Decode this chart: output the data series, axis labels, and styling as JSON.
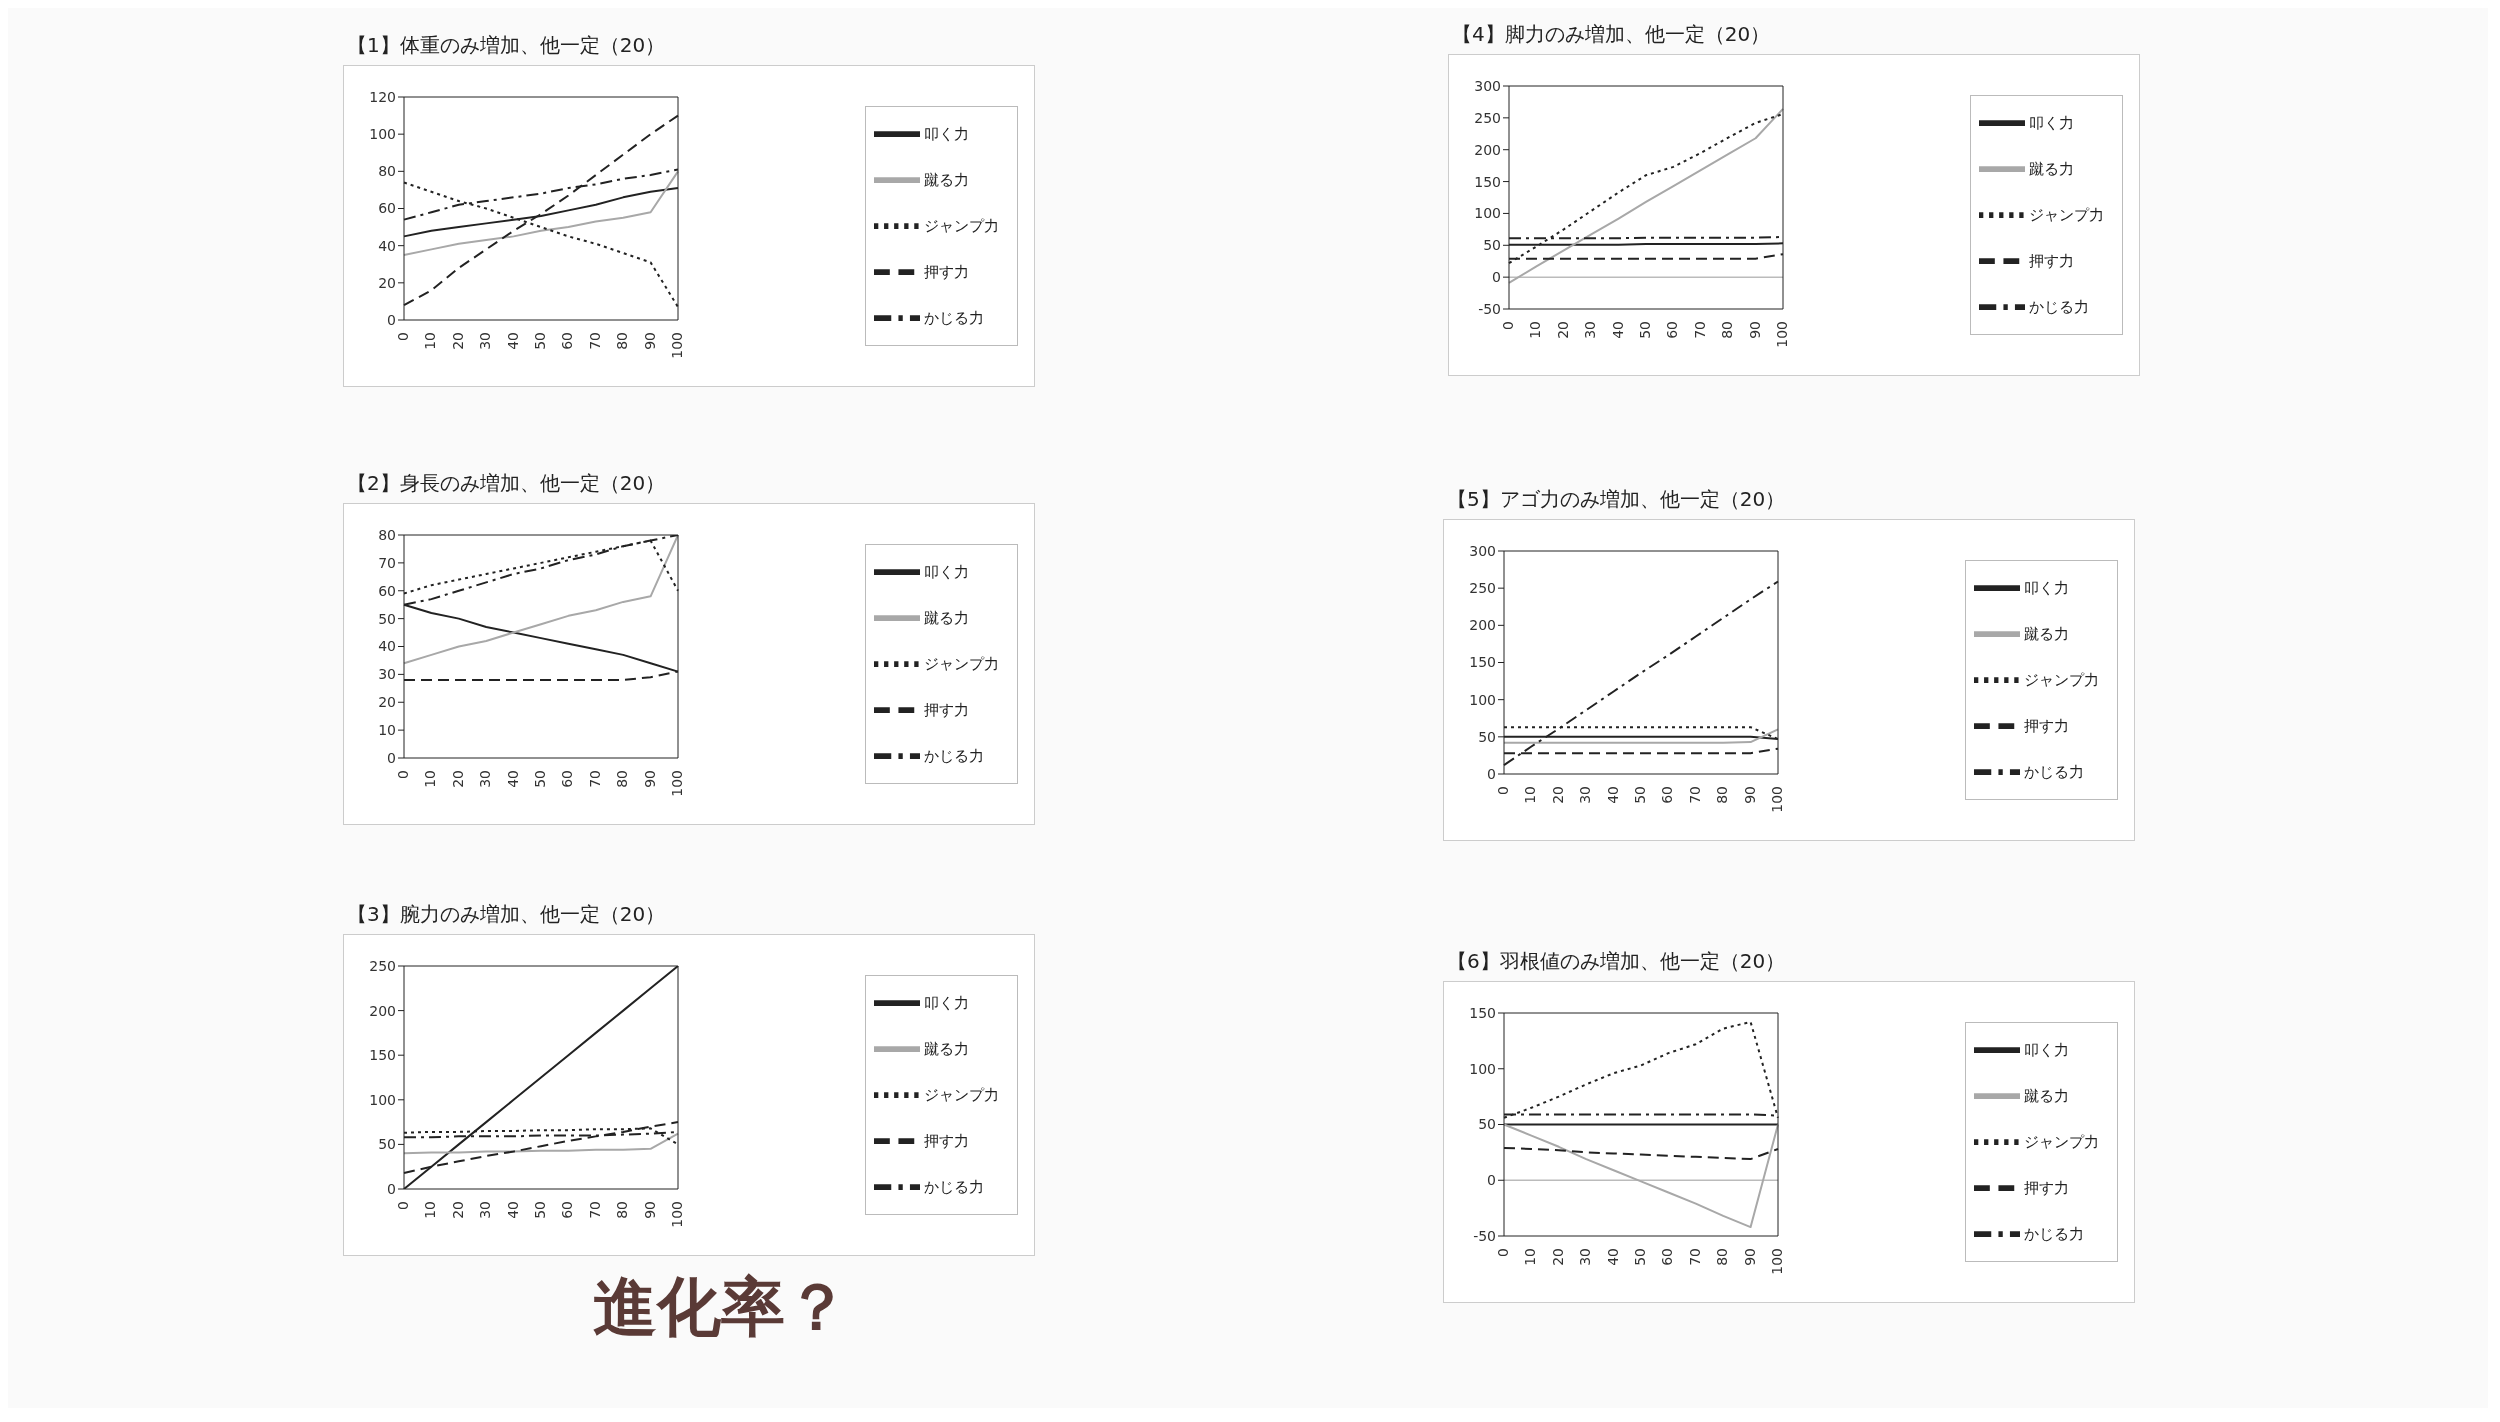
{
  "chart_data": [
    {
      "type": "line",
      "title": "【1】体重のみ増加、他一定（20）",
      "categories": [
        "0",
        "10",
        "20",
        "30",
        "40",
        "50",
        "60",
        "70",
        "80",
        "90",
        "100"
      ],
      "ylim": [
        0,
        120
      ],
      "yticks": [
        0,
        20,
        40,
        60,
        80,
        100,
        120
      ],
      "grid": false,
      "legend": "right",
      "series": [
        {
          "name": "叩く力",
          "color": "#222222",
          "line_style": "solid",
          "values": [
            45,
            48,
            50,
            52,
            54,
            56,
            59,
            62,
            66,
            69,
            71
          ]
        },
        {
          "name": "蹴る力",
          "color": "#a8a8a8",
          "line_style": "solid",
          "values": [
            35,
            38,
            41,
            43,
            45,
            48,
            50,
            53,
            55,
            58,
            80
          ]
        },
        {
          "name": "ジャンプ力",
          "color": "#222222",
          "line_style": "dotted",
          "values": [
            74,
            69,
            64,
            60,
            55,
            50,
            45,
            41,
            36,
            31,
            7
          ]
        },
        {
          "name": "押す力",
          "color": "#222222",
          "line_style": "dashed",
          "values": [
            8,
            16,
            28,
            38,
            48,
            57,
            67,
            78,
            89,
            100,
            110
          ]
        },
        {
          "name": "かじる力",
          "color": "#222222",
          "line_style": "dashdot",
          "values": [
            54,
            58,
            62,
            64,
            66,
            68,
            71,
            73,
            76,
            78,
            81
          ]
        }
      ]
    },
    {
      "type": "line",
      "title": "【2】身長のみ増加、他一定（20）",
      "categories": [
        "0",
        "10",
        "20",
        "30",
        "40",
        "50",
        "60",
        "70",
        "80",
        "90",
        "100"
      ],
      "ylim": [
        0,
        80
      ],
      "yticks": [
        0,
        10,
        20,
        30,
        40,
        50,
        60,
        70,
        80
      ],
      "grid": false,
      "legend": "right",
      "series": [
        {
          "name": "叩く力",
          "color": "#222222",
          "line_style": "solid",
          "values": [
            55,
            52,
            50,
            47,
            45,
            43,
            41,
            39,
            37,
            34,
            31
          ]
        },
        {
          "name": "蹴る力",
          "color": "#a8a8a8",
          "line_style": "solid",
          "values": [
            34,
            37,
            40,
            42,
            45,
            48,
            51,
            53,
            56,
            58,
            80
          ]
        },
        {
          "name": "ジャンプ力",
          "color": "#222222",
          "line_style": "dotted",
          "values": [
            59,
            62,
            64,
            66,
            68,
            70,
            72,
            74,
            76,
            78,
            60
          ]
        },
        {
          "name": "押す力",
          "color": "#222222",
          "line_style": "dashed",
          "values": [
            28,
            28,
            28,
            28,
            28,
            28,
            28,
            28,
            28,
            29,
            31
          ]
        },
        {
          "name": "かじる力",
          "color": "#222222",
          "line_style": "dashdot",
          "values": [
            55,
            57,
            60,
            63,
            66,
            68,
            71,
            73,
            76,
            78,
            80
          ]
        }
      ]
    },
    {
      "type": "line",
      "title": "【3】腕力のみ増加、他一定（20）",
      "categories": [
        "0",
        "10",
        "20",
        "30",
        "40",
        "50",
        "60",
        "70",
        "80",
        "90",
        "100"
      ],
      "ylim": [
        0,
        250
      ],
      "yticks": [
        0,
        50,
        100,
        150,
        200,
        250
      ],
      "grid": false,
      "legend": "right",
      "annotations": [
        "進化率？"
      ],
      "series": [
        {
          "name": "叩く力",
          "color": "#222222",
          "line_style": "solid",
          "values": [
            0,
            25,
            50,
            75,
            100,
            125,
            150,
            175,
            200,
            225,
            250
          ]
        },
        {
          "name": "蹴る力",
          "color": "#a8a8a8",
          "line_style": "solid",
          "values": [
            40,
            41,
            41,
            42,
            42,
            43,
            43,
            44,
            44,
            45,
            62
          ]
        },
        {
          "name": "ジャンプ力",
          "color": "#222222",
          "line_style": "dotted",
          "values": [
            63,
            64,
            64,
            65,
            65,
            66,
            66,
            67,
            67,
            68,
            50
          ]
        },
        {
          "name": "押す力",
          "color": "#222222",
          "line_style": "dashed",
          "values": [
            18,
            25,
            31,
            37,
            42,
            48,
            54,
            59,
            64,
            70,
            75
          ]
        },
        {
          "name": "かじる力",
          "color": "#222222",
          "line_style": "dashdot",
          "values": [
            58,
            58,
            59,
            59,
            59,
            60,
            60,
            60,
            61,
            62,
            64
          ]
        }
      ]
    },
    {
      "type": "line",
      "title": "【4】脚力のみ増加、他一定（20）",
      "categories": [
        "0",
        "10",
        "20",
        "30",
        "40",
        "50",
        "60",
        "70",
        "80",
        "90",
        "100"
      ],
      "ylim": [
        -50,
        300
      ],
      "yticks": [
        -50,
        0,
        50,
        100,
        150,
        200,
        250,
        300
      ],
      "grid": false,
      "legend": "right",
      "ref_lines": [
        {
          "axis": "y",
          "value": 0,
          "color": "#bbbbbb"
        }
      ],
      "series": [
        {
          "name": "叩く力",
          "color": "#222222",
          "line_style": "solid",
          "values": [
            51,
            51,
            51,
            51,
            51,
            52,
            52,
            52,
            52,
            52,
            53
          ]
        },
        {
          "name": "蹴る力",
          "color": "#a8a8a8",
          "line_style": "solid",
          "values": [
            -9,
            17,
            42,
            67,
            92,
            118,
            143,
            168,
            193,
            218,
            264
          ]
        },
        {
          "name": "ジャンプ力",
          "color": "#222222",
          "line_style": "dotted",
          "values": [
            22,
            48,
            75,
            104,
            133,
            160,
            173,
            195,
            219,
            242,
            256
          ]
        },
        {
          "name": "押す力",
          "color": "#222222",
          "line_style": "dashed",
          "values": [
            29,
            29,
            29,
            29,
            29,
            29,
            29,
            29,
            29,
            29,
            36
          ]
        },
        {
          "name": "かじる力",
          "color": "#222222",
          "line_style": "dashdot",
          "values": [
            61,
            61,
            61,
            61,
            61,
            62,
            62,
            62,
            62,
            62,
            63
          ]
        }
      ]
    },
    {
      "type": "line",
      "title": "【5】アゴ力のみ増加、他一定（20）",
      "categories": [
        "0",
        "10",
        "20",
        "30",
        "40",
        "50",
        "60",
        "70",
        "80",
        "90",
        "100"
      ],
      "ylim": [
        0,
        300
      ],
      "yticks": [
        0,
        50,
        100,
        150,
        200,
        250,
        300
      ],
      "grid": false,
      "legend": "right",
      "series": [
        {
          "name": "叩く力",
          "color": "#222222",
          "line_style": "solid",
          "values": [
            50,
            50,
            50,
            50,
            50,
            50,
            50,
            50,
            50,
            50,
            47
          ]
        },
        {
          "name": "蹴る力",
          "color": "#a8a8a8",
          "line_style": "solid",
          "values": [
            42,
            42,
            42,
            42,
            42,
            42,
            42,
            42,
            42,
            43,
            60
          ]
        },
        {
          "name": "ジャンプ力",
          "color": "#222222",
          "line_style": "dotted",
          "values": [
            63,
            63,
            63,
            63,
            63,
            63,
            63,
            63,
            63,
            63,
            47
          ]
        },
        {
          "name": "押す力",
          "color": "#222222",
          "line_style": "dashed",
          "values": [
            28,
            28,
            28,
            28,
            28,
            28,
            28,
            28,
            28,
            28,
            34
          ]
        },
        {
          "name": "かじる力",
          "color": "#222222",
          "line_style": "dashdot",
          "values": [
            12,
            37,
            61,
            86,
            111,
            136,
            160,
            185,
            210,
            235,
            259
          ]
        }
      ]
    },
    {
      "type": "line",
      "title": "【6】羽根値のみ増加、他一定（20）",
      "categories": [
        "0",
        "10",
        "20",
        "30",
        "40",
        "50",
        "60",
        "70",
        "80",
        "90",
        "100"
      ],
      "ylim": [
        -50,
        150
      ],
      "yticks": [
        -50,
        0,
        50,
        100,
        150
      ],
      "grid": false,
      "legend": "right",
      "ref_lines": [
        {
          "axis": "y",
          "value": 0,
          "color": "#bbbbbb"
        }
      ],
      "series": [
        {
          "name": "叩く力",
          "color": "#222222",
          "line_style": "solid",
          "values": [
            50,
            50,
            50,
            50,
            50,
            50,
            50,
            50,
            50,
            50,
            50
          ]
        },
        {
          "name": "蹴る力",
          "color": "#a8a8a8",
          "line_style": "solid",
          "values": [
            50,
            40,
            30,
            19,
            9,
            -1,
            -11,
            -21,
            -32,
            -42,
            50
          ]
        },
        {
          "name": "ジャンプ力",
          "color": "#222222",
          "line_style": "dotted",
          "values": [
            56,
            65,
            75,
            86,
            96,
            103,
            114,
            122,
            136,
            142,
            56
          ]
        },
        {
          "name": "押す力",
          "color": "#222222",
          "line_style": "dashed",
          "values": [
            29,
            28,
            27,
            25,
            24,
            23,
            22,
            21,
            20,
            19,
            28
          ]
        },
        {
          "name": "かじる力",
          "color": "#222222",
          "line_style": "dashdot",
          "values": [
            59,
            59,
            59,
            59,
            59,
            59,
            59,
            59,
            59,
            59,
            58
          ]
        }
      ]
    }
  ]
}
